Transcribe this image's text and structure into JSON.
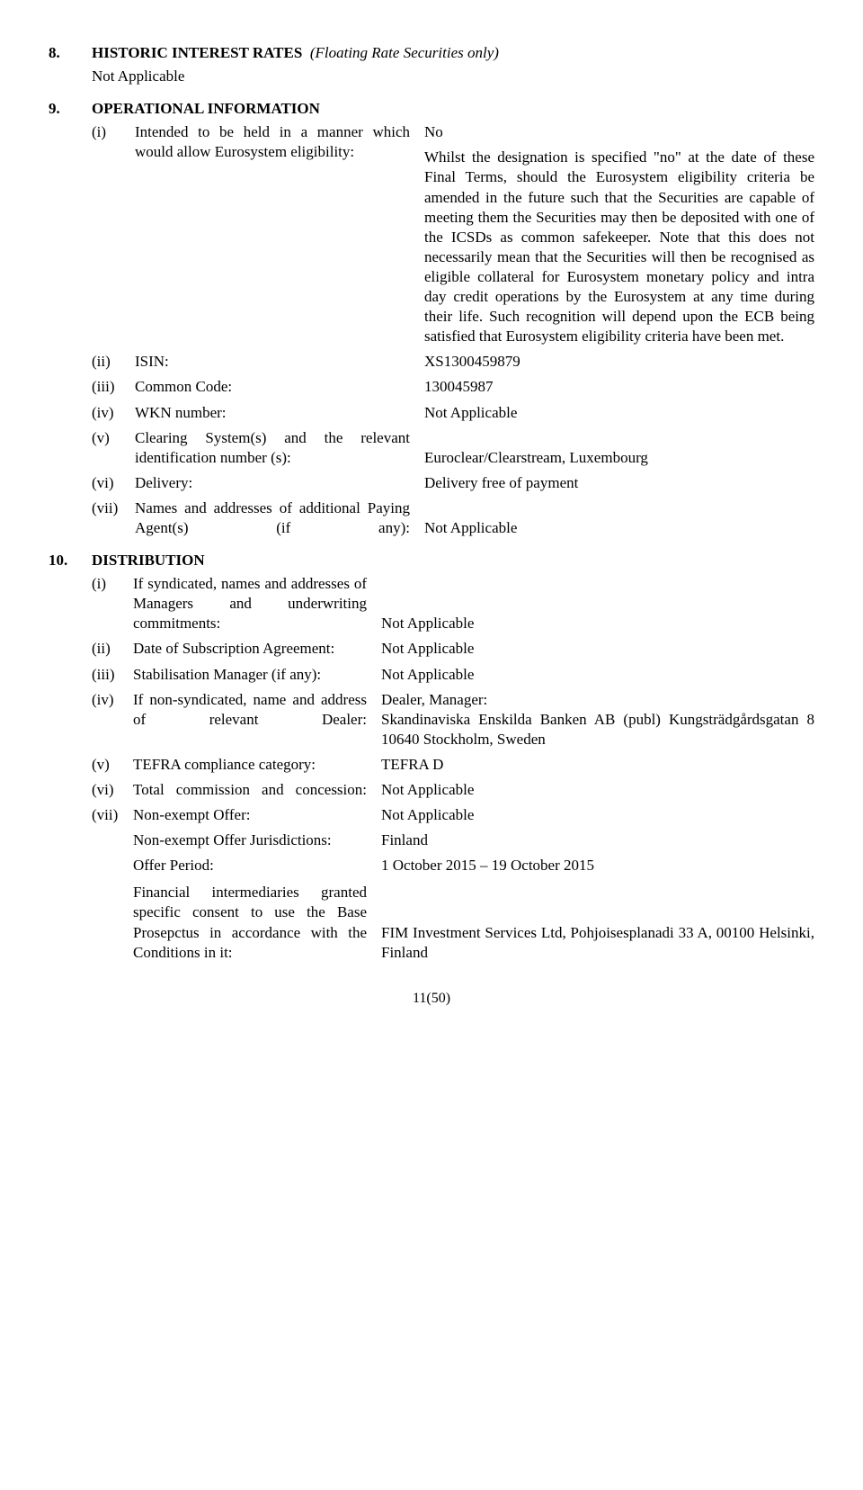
{
  "section8": {
    "num": "8.",
    "title": "HISTORIC INTEREST RATES",
    "title_suffix": "(Floating Rate Securities only)",
    "body": "Not Applicable"
  },
  "section9": {
    "num": "9.",
    "title": "OPERATIONAL INFORMATION",
    "items": {
      "i": {
        "marker": "(i)",
        "label": "Intended to be held in a manner which would allow Eurosystem eligibility:",
        "value_head": "No",
        "value_body": "Whilst the designation is specified \"no\" at the date of these Final Terms, should the Eurosystem eligibility criteria be amended in the future such that the Securities are capable of meeting them the Securities may then be deposited with one of the ICSDs as common safekeeper. Note that this does not necessarily mean that the Securities will then be recognised as eligible collateral for Eurosystem monetary policy and intra day credit operations by the Eurosystem at any time during their life. Such recognition will depend upon the ECB being satisfied that Eurosystem eligibility criteria have been met."
      },
      "ii": {
        "marker": "(ii)",
        "label": "ISIN:",
        "value": "XS1300459879"
      },
      "iii": {
        "marker": "(iii)",
        "label": "Common Code:",
        "value": "130045987"
      },
      "iv": {
        "marker": "(iv)",
        "label": "WKN number:",
        "value": "Not Applicable"
      },
      "v": {
        "marker": "(v)",
        "label": "Clearing System(s) and the relevant identification number (s):",
        "value": "Euroclear/Clearstream, Luxembourg"
      },
      "vi": {
        "marker": "(vi)",
        "label": "Delivery:",
        "value": "Delivery free of payment"
      },
      "vii": {
        "marker": "(vii)",
        "label": "Names and addresses of additional Paying Agent(s) (if any):",
        "value": "Not Applicable"
      }
    }
  },
  "section10": {
    "num": "10.",
    "title": "DISTRIBUTION",
    "items": {
      "i": {
        "marker": "(i)",
        "label": "If syndicated, names and addresses of Managers and underwriting commitments:",
        "value": "Not Applicable"
      },
      "ii": {
        "marker": "(ii)",
        "label": "Date of Subscription Agreement:",
        "value": "Not Applicable"
      },
      "iii": {
        "marker": "(iii)",
        "label": "Stabilisation Manager (if any):",
        "value": "Not Applicable"
      },
      "iv": {
        "marker": "(iv)",
        "label": "If non-syndicated, name and address of relevant Dealer:",
        "value": "Dealer, Manager:\nSkandinaviska Enskilda Banken AB (publ) Kungsträdgårdsgatan 8 10640 Stockholm, Sweden"
      },
      "v": {
        "marker": "(v)",
        "label": "TEFRA compliance category:",
        "value": "TEFRA D"
      },
      "vi": {
        "marker": "(vi)",
        "label": "Total commission and concession:",
        "value": "Not Applicable"
      },
      "vii": {
        "marker": "(vii)",
        "label": "Non-exempt Offer:",
        "value": "Not Applicable"
      },
      "extra1": {
        "label": "Non-exempt Offer Jurisdictions:",
        "value": "Finland"
      },
      "extra2": {
        "label": "Offer Period:",
        "value": "1 October 2015 – 19 October 2015"
      },
      "extra3": {
        "label": "Financial intermediaries granted specific consent to use the Base Prosepctus in accordance with the Conditions in it:",
        "value": "FIM Investment Services Ltd, Pohjoisesplanadi 33 A, 00100 Helsinki, Finland"
      }
    }
  },
  "page_number": "11(50)"
}
